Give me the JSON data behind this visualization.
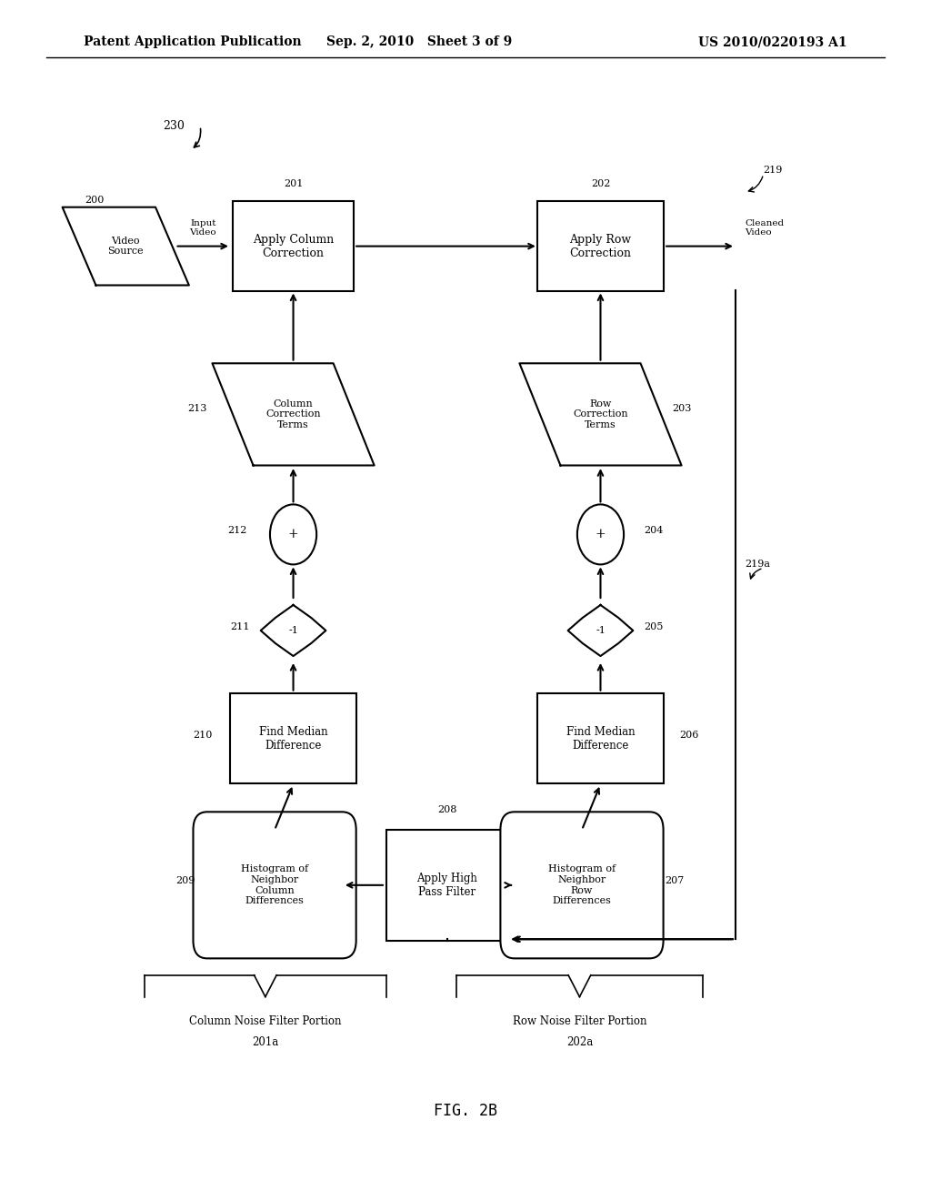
{
  "bg_color": "#ffffff",
  "line_color": "#000000",
  "header_left": "Patent Application Publication",
  "header_mid": "Sep. 2, 2010   Sheet 3 of 9",
  "header_right": "US 2010/0220193 A1",
  "fig_label": "FIG. 2B"
}
